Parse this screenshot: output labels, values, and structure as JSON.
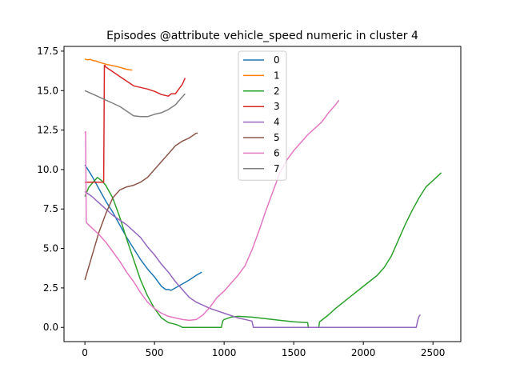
{
  "chart_data": {
    "type": "line",
    "title": "Episodes @attribute vehicle_speed numeric in cluster 4",
    "xlabel": "",
    "ylabel": "",
    "xlim": [
      -150,
      2700
    ],
    "ylim": [
      -0.9,
      17.8
    ],
    "xticks": [
      0,
      500,
      1000,
      1500,
      2000,
      2500
    ],
    "yticks": [
      0.0,
      2.5,
      5.0,
      7.5,
      10.0,
      12.5,
      15.0,
      17.5
    ],
    "ytick_labels": [
      "0.0",
      "2.5",
      "5.0",
      "7.5",
      "10.0",
      "12.5",
      "15.0",
      "17.5"
    ],
    "grid": false,
    "legend": "top-center",
    "series": [
      {
        "name": "0",
        "color": "#1f77b4",
        "x": [
          0,
          50,
          100,
          150,
          200,
          250,
          300,
          350,
          400,
          450,
          500,
          550,
          580,
          600,
          620,
          650,
          700,
          750,
          800,
          840
        ],
        "y": [
          10.3,
          9.6,
          8.8,
          8.0,
          7.3,
          6.5,
          5.7,
          5.0,
          4.3,
          3.7,
          3.2,
          2.6,
          2.4,
          2.4,
          2.35,
          2.5,
          2.75,
          3.0,
          3.3,
          3.5
        ]
      },
      {
        "name": "1",
        "color": "#ff7f0e",
        "x": [
          0,
          20,
          40,
          60,
          80,
          100,
          120,
          140,
          160,
          180,
          200,
          220,
          240,
          260,
          280,
          300,
          320,
          340
        ],
        "y": [
          17.0,
          16.95,
          16.98,
          16.9,
          16.88,
          16.8,
          16.75,
          16.7,
          16.65,
          16.62,
          16.58,
          16.55,
          16.5,
          16.45,
          16.4,
          16.35,
          16.32,
          16.3
        ]
      },
      {
        "name": "2",
        "color": "#2ca02c",
        "x": [
          0,
          30,
          60,
          90,
          120,
          150,
          200,
          250,
          300,
          350,
          400,
          450,
          500,
          550,
          600,
          650,
          680,
          700,
          800,
          900,
          980,
          990,
          1000,
          1050,
          1100,
          1200,
          1300,
          1400,
          1500,
          1600,
          1605,
          1660,
          1680,
          1685,
          1700,
          1750,
          1800,
          1900,
          2000,
          2100,
          2150,
          2200,
          2250,
          2300,
          2350,
          2400,
          2450,
          2500,
          2560
        ],
        "y": [
          8.3,
          8.9,
          9.2,
          9.5,
          9.3,
          9.0,
          8.2,
          7.0,
          5.6,
          4.3,
          3.0,
          2.0,
          1.2,
          0.6,
          0.3,
          0.2,
          0.1,
          0.0,
          0.0,
          0.0,
          0.0,
          0.4,
          0.5,
          0.65,
          0.7,
          0.65,
          0.55,
          0.45,
          0.35,
          0.3,
          0.0,
          0.0,
          0.0,
          0.35,
          0.45,
          0.8,
          1.2,
          1.9,
          2.6,
          3.3,
          3.8,
          4.5,
          5.5,
          6.5,
          7.4,
          8.2,
          8.9,
          9.3,
          9.8
        ]
      },
      {
        "name": "3",
        "color": "#d62728",
        "x": [
          0,
          50,
          100,
          135,
          140,
          145,
          150,
          200,
          250,
          300,
          350,
          400,
          450,
          500,
          550,
          600,
          620,
          650,
          700,
          720
        ],
        "y": [
          9.2,
          9.2,
          9.2,
          9.2,
          16.6,
          16.6,
          16.5,
          16.2,
          15.9,
          15.6,
          15.3,
          15.2,
          15.1,
          14.95,
          14.75,
          14.65,
          14.8,
          14.8,
          15.4,
          15.8
        ]
      },
      {
        "name": "4",
        "color": "#9467bd",
        "x": [
          0,
          50,
          100,
          150,
          200,
          250,
          300,
          350,
          400,
          450,
          500,
          550,
          600,
          650,
          700,
          750,
          800,
          900,
          1000,
          1100,
          1200,
          1205,
          1210,
          1300,
          1500,
          1700,
          1900,
          2100,
          2300,
          2380,
          2390,
          2400,
          2410
        ],
        "y": [
          8.6,
          8.3,
          7.9,
          7.5,
          7.1,
          6.8,
          6.5,
          6.1,
          5.7,
          5.1,
          4.6,
          4.0,
          3.5,
          2.9,
          2.4,
          1.9,
          1.6,
          1.2,
          0.9,
          0.6,
          0.4,
          0.2,
          0.0,
          0.0,
          0.0,
          0.0,
          0.0,
          0.0,
          0.0,
          0.0,
          0.4,
          0.7,
          0.8
        ]
      },
      {
        "name": "5",
        "color": "#8c564b",
        "x": [
          0,
          50,
          100,
          150,
          200,
          250,
          300,
          350,
          400,
          450,
          500,
          550,
          600,
          650,
          700,
          750,
          800,
          810
        ],
        "y": [
          3.0,
          4.5,
          6.0,
          7.2,
          8.2,
          8.7,
          8.9,
          9.0,
          9.2,
          9.5,
          10.0,
          10.5,
          11.0,
          11.5,
          11.8,
          12.0,
          12.3,
          12.3
        ]
      },
      {
        "name": "6",
        "color": "#e377c2",
        "x": [
          0,
          5,
          10,
          15,
          50,
          100,
          150,
          200,
          250,
          300,
          350,
          400,
          450,
          500,
          550,
          600,
          650,
          700,
          750,
          800,
          850,
          900,
          950,
          1000,
          1050,
          1100,
          1150,
          1200,
          1250,
          1300,
          1350,
          1400,
          1450,
          1500,
          1550,
          1600,
          1650,
          1700,
          1750,
          1800,
          1825
        ],
        "y": [
          12.3,
          12.4,
          6.7,
          6.6,
          6.3,
          5.9,
          5.4,
          4.8,
          4.2,
          3.5,
          2.9,
          2.2,
          1.6,
          1.2,
          0.9,
          0.7,
          0.6,
          0.5,
          0.45,
          0.5,
          0.8,
          1.3,
          1.9,
          2.3,
          2.8,
          3.3,
          3.9,
          4.9,
          6.1,
          7.4,
          8.6,
          9.8,
          10.6,
          11.2,
          11.7,
          12.2,
          12.6,
          13.0,
          13.6,
          14.1,
          14.4
        ]
      },
      {
        "name": "7",
        "color": "#7f7f7f",
        "x": [
          0,
          50,
          100,
          150,
          200,
          250,
          300,
          350,
          400,
          450,
          500,
          550,
          600,
          650,
          700,
          720
        ],
        "y": [
          15.0,
          14.8,
          14.6,
          14.4,
          14.2,
          14.0,
          13.7,
          13.4,
          13.35,
          13.35,
          13.5,
          13.6,
          13.8,
          14.1,
          14.6,
          14.8
        ]
      }
    ]
  }
}
